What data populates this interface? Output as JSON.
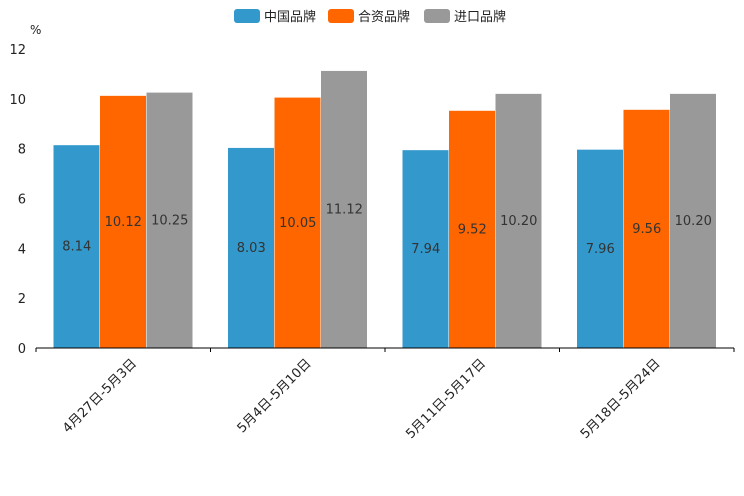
{
  "chart_data": {
    "type": "bar",
    "title": "",
    "ylabel": "%",
    "xlabel": "",
    "ylim": [
      0,
      12
    ],
    "yticks": [
      0,
      2,
      4,
      6,
      8,
      10,
      12
    ],
    "categories": [
      "4月27日-5月3日",
      "5月4日-5月10日",
      "5月11日-5月17日",
      "5月18日-5月24日"
    ],
    "series": [
      {
        "name": "中国品牌",
        "color": "#3399cc",
        "values": [
          8.14,
          8.03,
          7.94,
          7.96
        ],
        "labels": [
          "8.14",
          "8.03",
          "7.94",
          "7.96"
        ]
      },
      {
        "name": "合资品牌",
        "color": "#ff6600",
        "values": [
          10.12,
          10.05,
          9.52,
          9.56
        ],
        "labels": [
          "10.12",
          "10.05",
          "9.52",
          "9.56"
        ]
      },
      {
        "name": "进口品牌",
        "color": "#999999",
        "values": [
          10.25,
          11.12,
          10.2,
          10.2
        ],
        "labels": [
          "10.25",
          "11.12",
          "10.20",
          "10.20"
        ]
      }
    ],
    "legend_position": "top-center",
    "grid": false
  }
}
